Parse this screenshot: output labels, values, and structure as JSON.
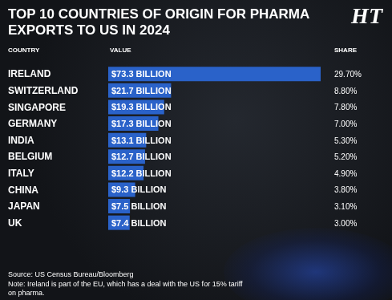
{
  "chart_data": {
    "type": "bar",
    "orientation": "horizontal",
    "title": "TOP 10 COUNTRIES OF ORIGIN FOR PHARMA EXPORTS TO US IN 2024",
    "logo": "HT",
    "column_headers": [
      "COUNTRY",
      "VALUE",
      "SHARE"
    ],
    "categories": [
      "IRELAND",
      "SWITZERLAND",
      "SINGAPORE",
      "GERMANY",
      "INDIA",
      "BELGIUM",
      "ITALY",
      "CHINA",
      "JAPAN",
      "UK"
    ],
    "values": [
      73.3,
      21.7,
      19.3,
      17.3,
      13.1,
      12.7,
      12.2,
      9.3,
      7.5,
      7.4
    ],
    "value_labels": [
      "$73.3 BILLION",
      "$21.7 BILLION",
      "$19.3 BILLION",
      "$17.3 BILLION",
      "$13.1 BILLION",
      "$12.7 BILLION",
      "$12.2 BILLION",
      "$9.3 BILLION",
      "$7.5 BILLION",
      "$7.4 BILLION"
    ],
    "shares": [
      29.7,
      8.8,
      7.8,
      7.0,
      5.3,
      5.2,
      4.9,
      3.8,
      3.1,
      3.0
    ],
    "share_labels": [
      "29.70%",
      "8.80%",
      "7.80%",
      "7.00%",
      "5.30%",
      "5.20%",
      "4.90%",
      "3.80%",
      "3.10%",
      "3.00%"
    ],
    "color": "#2a62c9",
    "xlim": [
      0,
      73.3
    ],
    "grid": false,
    "data_labels": true,
    "tick_labels": "y",
    "source": "Source: US Census Bureau/Bloomberg",
    "note": "Note: Ireland is part of the EU, which has a deal with the US for 15% tariff on pharma."
  }
}
